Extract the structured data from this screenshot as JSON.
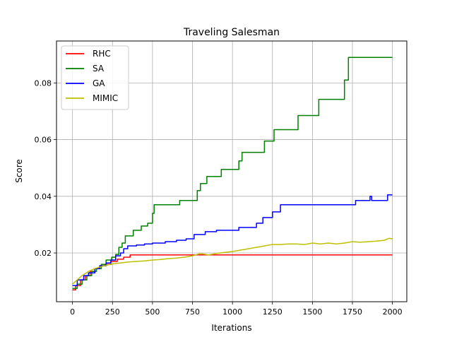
{
  "chart_data": {
    "type": "line",
    "title": "Traveling Salesman",
    "xlabel": "Iterations",
    "ylabel": "Score",
    "xlim": [
      -100,
      2090
    ],
    "ylim": [
      0.0028,
      0.0948
    ],
    "xticks": [
      0,
      250,
      500,
      750,
      1000,
      1250,
      1500,
      1750,
      2000
    ],
    "xtick_labels": [
      "0",
      "250",
      "500",
      "750",
      "1000",
      "1250",
      "1500",
      "1750",
      "2000"
    ],
    "yticks": [
      0.02,
      0.04,
      0.06,
      0.08
    ],
    "ytick_labels": [
      "0.02",
      "0.04",
      "0.06",
      "0.08"
    ],
    "grid": true,
    "legend_position": "top-left",
    "series": [
      {
        "name": "RHC",
        "color": "#ff0000",
        "step": true,
        "points": [
          [
            0,
            0.007
          ],
          [
            20,
            0.0085
          ],
          [
            50,
            0.0105
          ],
          [
            80,
            0.012
          ],
          [
            110,
            0.0135
          ],
          [
            140,
            0.0145
          ],
          [
            170,
            0.0155
          ],
          [
            200,
            0.016
          ],
          [
            240,
            0.017
          ],
          [
            280,
            0.0178
          ],
          [
            320,
            0.0185
          ],
          [
            360,
            0.0193
          ],
          [
            2000,
            0.0193
          ]
        ]
      },
      {
        "name": "SA",
        "color": "#008000",
        "step": true,
        "points": [
          [
            0,
            0.0075
          ],
          [
            30,
            0.009
          ],
          [
            60,
            0.0105
          ],
          [
            90,
            0.012
          ],
          [
            120,
            0.0135
          ],
          [
            150,
            0.0145
          ],
          [
            180,
            0.016
          ],
          [
            210,
            0.0175
          ],
          [
            245,
            0.0185
          ],
          [
            270,
            0.0195
          ],
          [
            290,
            0.022
          ],
          [
            310,
            0.0235
          ],
          [
            330,
            0.026
          ],
          [
            380,
            0.028
          ],
          [
            430,
            0.0295
          ],
          [
            470,
            0.0305
          ],
          [
            500,
            0.034
          ],
          [
            510,
            0.037
          ],
          [
            670,
            0.0385
          ],
          [
            780,
            0.042
          ],
          [
            800,
            0.0445
          ],
          [
            840,
            0.047
          ],
          [
            930,
            0.0495
          ],
          [
            1040,
            0.0525
          ],
          [
            1060,
            0.0555
          ],
          [
            1200,
            0.0595
          ],
          [
            1260,
            0.0635
          ],
          [
            1410,
            0.0685
          ],
          [
            1540,
            0.0742
          ],
          [
            1700,
            0.081
          ],
          [
            1725,
            0.089
          ],
          [
            2000,
            0.089
          ]
        ]
      },
      {
        "name": "GA",
        "color": "#0000ff",
        "step": true,
        "points": [
          [
            0,
            0.0085
          ],
          [
            30,
            0.0105
          ],
          [
            70,
            0.012
          ],
          [
            100,
            0.013
          ],
          [
            140,
            0.0145
          ],
          [
            170,
            0.0155
          ],
          [
            210,
            0.0165
          ],
          [
            240,
            0.0175
          ],
          [
            270,
            0.019
          ],
          [
            300,
            0.02
          ],
          [
            320,
            0.0215
          ],
          [
            345,
            0.0225
          ],
          [
            400,
            0.0228
          ],
          [
            450,
            0.0232
          ],
          [
            500,
            0.0235
          ],
          [
            580,
            0.024
          ],
          [
            650,
            0.0245
          ],
          [
            710,
            0.025
          ],
          [
            760,
            0.0265
          ],
          [
            830,
            0.0275
          ],
          [
            900,
            0.028
          ],
          [
            960,
            0.028
          ],
          [
            1040,
            0.029
          ],
          [
            1150,
            0.0305
          ],
          [
            1190,
            0.0325
          ],
          [
            1250,
            0.0345
          ],
          [
            1300,
            0.037
          ],
          [
            1770,
            0.0385
          ],
          [
            1850,
            0.0385
          ],
          [
            1860,
            0.04
          ],
          [
            1870,
            0.0385
          ],
          [
            1960,
            0.0385
          ],
          [
            1970,
            0.0405
          ],
          [
            2000,
            0.0405
          ]
        ]
      },
      {
        "name": "MIMIC",
        "color": "#bfbf00",
        "step": false,
        "points": [
          [
            0,
            0.009
          ],
          [
            30,
            0.0105
          ],
          [
            60,
            0.012
          ],
          [
            100,
            0.0135
          ],
          [
            140,
            0.0145
          ],
          [
            180,
            0.0152
          ],
          [
            220,
            0.0158
          ],
          [
            260,
            0.0162
          ],
          [
            300,
            0.0165
          ],
          [
            350,
            0.0168
          ],
          [
            400,
            0.017
          ],
          [
            450,
            0.0172
          ],
          [
            500,
            0.0175
          ],
          [
            550,
            0.0177
          ],
          [
            600,
            0.018
          ],
          [
            650,
            0.0182
          ],
          [
            700,
            0.0185
          ],
          [
            750,
            0.019
          ],
          [
            800,
            0.0198
          ],
          [
            850,
            0.0193
          ],
          [
            900,
            0.0198
          ],
          [
            950,
            0.0202
          ],
          [
            1000,
            0.0205
          ],
          [
            1050,
            0.021
          ],
          [
            1100,
            0.0215
          ],
          [
            1150,
            0.022
          ],
          [
            1200,
            0.0225
          ],
          [
            1250,
            0.023
          ],
          [
            1300,
            0.023
          ],
          [
            1350,
            0.0232
          ],
          [
            1400,
            0.0232
          ],
          [
            1450,
            0.023
          ],
          [
            1500,
            0.0235
          ],
          [
            1550,
            0.0232
          ],
          [
            1600,
            0.0235
          ],
          [
            1650,
            0.0232
          ],
          [
            1700,
            0.0235
          ],
          [
            1750,
            0.024
          ],
          [
            1800,
            0.0238
          ],
          [
            1850,
            0.024
          ],
          [
            1900,
            0.0242
          ],
          [
            1950,
            0.0245
          ],
          [
            1980,
            0.0252
          ],
          [
            2000,
            0.025
          ]
        ]
      }
    ]
  }
}
